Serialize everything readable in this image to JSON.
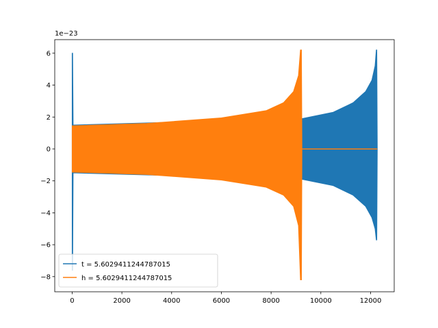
{
  "chart_data": {
    "type": "line",
    "title": "",
    "xlabel": "",
    "ylabel": "",
    "y_offset_label": "1e−23",
    "xlim": [
      -700,
      12950
    ],
    "ylim": [
      -8.95,
      6.85
    ],
    "x_ticks": [
      0,
      2000,
      4000,
      6000,
      8000,
      10000,
      12000
    ],
    "x_tick_labels": [
      "0",
      "2000",
      "4000",
      "6000",
      "8000",
      "10000",
      "12000"
    ],
    "y_ticks": [
      -8,
      -6,
      -4,
      -2,
      0,
      2,
      4,
      6
    ],
    "y_tick_labels": [
      "−8",
      "−6",
      "−4",
      "−2",
      "0",
      "2",
      "4",
      "6"
    ],
    "grid": false,
    "legend_position": "lower-left",
    "series": [
      {
        "name": "t = 5.6029411244787015",
        "color": "#1f77b4",
        "kind": "chirp-envelope",
        "envelope": [
          {
            "x": 0,
            "upper": 6.0,
            "lower": -7.6
          },
          {
            "x": 20,
            "upper": 6.0,
            "lower": -7.6
          },
          {
            "x": 40,
            "upper": 1.5,
            "lower": -1.5
          },
          {
            "x": 9240,
            "upper": 1.9,
            "lower": -1.9
          },
          {
            "x": 10500,
            "upper": 2.3,
            "lower": -2.3
          },
          {
            "x": 11300,
            "upper": 2.9,
            "lower": -2.9
          },
          {
            "x": 11800,
            "upper": 3.6,
            "lower": -3.6
          },
          {
            "x": 12050,
            "upper": 4.3,
            "lower": -4.3
          },
          {
            "x": 12180,
            "upper": 5.2,
            "lower": -5.0
          },
          {
            "x": 12230,
            "upper": 6.2,
            "lower": -5.7
          },
          {
            "x": 12250,
            "upper": 6.2,
            "lower": -5.7
          },
          {
            "x": 12270,
            "upper": 0.0,
            "lower": 0.0
          }
        ]
      },
      {
        "name": "h = 5.6029411244787015",
        "color": "#ff7f0e",
        "kind": "chirp-envelope",
        "envelope": [
          {
            "x": 0,
            "upper": 1.45,
            "lower": -1.45
          },
          {
            "x": 3000,
            "upper": 1.6,
            "lower": -1.6
          },
          {
            "x": 6000,
            "upper": 1.95,
            "lower": -1.95
          },
          {
            "x": 7800,
            "upper": 2.4,
            "lower": -2.4
          },
          {
            "x": 8500,
            "upper": 2.9,
            "lower": -2.9
          },
          {
            "x": 8900,
            "upper": 3.6,
            "lower": -3.6
          },
          {
            "x": 9100,
            "upper": 4.6,
            "lower": -4.8
          },
          {
            "x": 9180,
            "upper": 6.2,
            "lower": -8.2
          },
          {
            "x": 9220,
            "upper": 6.2,
            "lower": -8.2
          },
          {
            "x": 9240,
            "upper": 0.0,
            "lower": 0.0
          }
        ],
        "flat_line": {
          "from": 9240,
          "to": 12270,
          "y": 0
        }
      }
    ]
  }
}
